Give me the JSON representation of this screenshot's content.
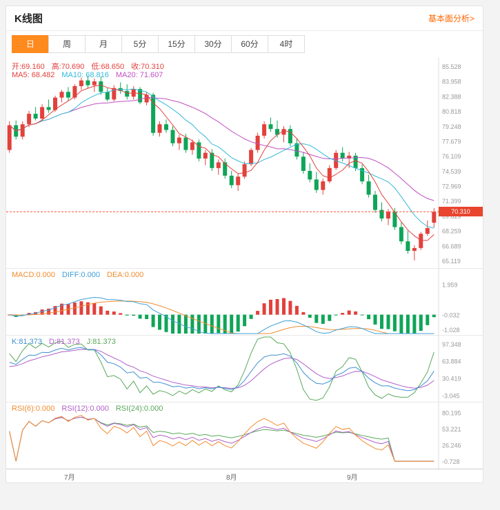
{
  "header": {
    "title": "K线图",
    "analysis_link": "基本面分析>"
  },
  "tabs": [
    {
      "label": "日",
      "active": true
    },
    {
      "label": "周"
    },
    {
      "label": "月"
    },
    {
      "label": "5分"
    },
    {
      "label": "15分"
    },
    {
      "label": "30分"
    },
    {
      "label": "60分"
    },
    {
      "label": "4时"
    }
  ],
  "colors": {
    "up": "#e2413c",
    "down": "#0fa558",
    "ma5": "#e2413c",
    "ma10": "#33b8d8",
    "ma20": "#c24fc2",
    "diff": "#3d9fd8",
    "dea": "#f08c2e",
    "k": "#3d8fd0",
    "d": "#b05fc8",
    "j": "#58a85a",
    "rsi6": "#f08c2e",
    "rsi12": "#b05fc8",
    "rsi24": "#58a85a",
    "price_line": "#ff4b33",
    "badge_bg": "#e8442e",
    "accent": "#ff8a1e",
    "link": "#ff6600"
  },
  "main_chart": {
    "ohlc_line": [
      {
        "text": "开:69.160"
      },
      {
        "text": "高:70.690"
      },
      {
        "text": "低:68.650"
      },
      {
        "text": "收:70.310"
      }
    ],
    "ma_line": [
      {
        "text": "MA5: 68.482",
        "color": "#e2413c"
      },
      {
        "text": "MA10: 68.816",
        "color": "#33b8d8"
      },
      {
        "text": "MA20: 71.607",
        "color": "#c24fc2"
      }
    ],
    "current_price": "70.310"
  },
  "indicators": {
    "macd": {
      "labels": [
        {
          "text": "MACD:0.000",
          "color": "#f08c2e"
        },
        {
          "text": "DIFF:0.000",
          "color": "#3d9fd8"
        },
        {
          "text": "DEA:0.000",
          "color": "#f08c2e"
        }
      ]
    },
    "kdj": {
      "labels": [
        {
          "text": "K:81.373",
          "color": "#3d8fd0"
        },
        {
          "text": "D:81.373",
          "color": "#b05fc8"
        },
        {
          "text": "J:81.373",
          "color": "#58a85a"
        }
      ]
    },
    "rsi": {
      "labels": [
        {
          "text": "RSI(6):0.000",
          "color": "#f08c2e"
        },
        {
          "text": "RSI(12):0.000",
          "color": "#b05fc8"
        },
        {
          "text": "RSI(24):0.000",
          "color": "#58a85a"
        }
      ]
    }
  },
  "chart_data": {
    "type": "candlestick",
    "ohlc_format": [
      "open",
      "high",
      "low",
      "close"
    ],
    "display_values": {
      "open": 69.16,
      "high": 70.69,
      "low": 68.65,
      "close": 70.31,
      "ma5": 68.482,
      "ma10": 68.816,
      "ma20": 71.607,
      "macd": 0.0,
      "diff": 0.0,
      "dea": 0.0,
      "k": 81.373,
      "d": 81.373,
      "j": 81.373,
      "rsi6": 0.0,
      "rsi12": 0.0,
      "rsi24": 0.0
    },
    "main": {
      "y_range": [
        65.119,
        85.528
      ],
      "y_ticks": [
        85.528,
        83.958,
        82.388,
        80.818,
        79.248,
        77.679,
        76.109,
        74.539,
        72.969,
        71.399,
        69.829,
        68.259,
        66.689,
        65.119
      ],
      "current_price": 70.31,
      "candles": [
        [
          76.8,
          79.8,
          76.5,
          79.4
        ],
        [
          79.4,
          79.9,
          77.9,
          78.2
        ],
        [
          78.2,
          79.8,
          77.9,
          79.5
        ],
        [
          79.5,
          80.9,
          79.2,
          80.6
        ],
        [
          80.6,
          81.3,
          79.9,
          80.1
        ],
        [
          80.1,
          81.6,
          79.8,
          81.3
        ],
        [
          81.3,
          82.1,
          80.7,
          81.0
        ],
        [
          81.0,
          82.5,
          80.8,
          82.3
        ],
        [
          82.3,
          83.1,
          81.8,
          82.9
        ],
        [
          82.9,
          83.4,
          82.0,
          82.3
        ],
        [
          82.3,
          83.7,
          82.1,
          83.5
        ],
        [
          83.5,
          84.4,
          83.1,
          84.1
        ],
        [
          84.1,
          84.6,
          83.3,
          83.6
        ],
        [
          83.6,
          84.3,
          82.9,
          84.0
        ],
        [
          84.0,
          84.5,
          82.6,
          82.9
        ],
        [
          82.9,
          83.3,
          81.9,
          82.1
        ],
        [
          82.1,
          83.6,
          81.9,
          83.3
        ],
        [
          83.3,
          83.9,
          82.7,
          83.0
        ],
        [
          83.0,
          83.7,
          82.1,
          82.4
        ],
        [
          82.4,
          83.5,
          82.1,
          83.2
        ],
        [
          83.2,
          83.4,
          81.6,
          81.8
        ],
        [
          81.8,
          82.9,
          81.5,
          82.6
        ],
        [
          82.6,
          82.8,
          78.3,
          78.6
        ],
        [
          78.6,
          79.8,
          78.2,
          79.5
        ],
        [
          79.5,
          80.0,
          78.6,
          78.9
        ],
        [
          78.9,
          79.3,
          77.2,
          77.5
        ],
        [
          77.5,
          78.4,
          76.8,
          78.1
        ],
        [
          78.1,
          78.5,
          76.5,
          76.8
        ],
        [
          76.8,
          77.9,
          76.3,
          77.6
        ],
        [
          77.6,
          77.9,
          75.6,
          75.9
        ],
        [
          75.9,
          76.8,
          75.2,
          76.5
        ],
        [
          76.5,
          76.9,
          74.6,
          74.9
        ],
        [
          74.9,
          75.8,
          74.2,
          75.5
        ],
        [
          75.5,
          75.9,
          73.8,
          74.1
        ],
        [
          74.1,
          74.6,
          72.8,
          73.1
        ],
        [
          73.1,
          74.3,
          72.5,
          74.0
        ],
        [
          74.0,
          75.6,
          73.8,
          75.3
        ],
        [
          75.3,
          77.0,
          75.1,
          76.8
        ],
        [
          76.8,
          78.6,
          76.5,
          78.3
        ],
        [
          78.3,
          79.8,
          78.0,
          79.5
        ],
        [
          79.5,
          80.2,
          78.7,
          79.0
        ],
        [
          79.0,
          79.9,
          78.1,
          78.4
        ],
        [
          78.4,
          79.3,
          77.6,
          79.0
        ],
        [
          79.0,
          79.4,
          77.2,
          77.5
        ],
        [
          77.5,
          78.0,
          75.8,
          76.1
        ],
        [
          76.1,
          76.6,
          74.3,
          74.6
        ],
        [
          74.6,
          75.4,
          73.4,
          73.7
        ],
        [
          73.7,
          74.5,
          72.3,
          72.6
        ],
        [
          72.6,
          73.8,
          72.1,
          73.5
        ],
        [
          73.5,
          75.2,
          73.3,
          74.9
        ],
        [
          74.9,
          76.8,
          74.7,
          76.5
        ],
        [
          76.5,
          77.1,
          75.6,
          75.9
        ],
        [
          75.9,
          76.6,
          74.9,
          76.2
        ],
        [
          76.2,
          76.5,
          74.6,
          74.9
        ],
        [
          74.9,
          75.3,
          73.2,
          73.5
        ],
        [
          73.5,
          74.2,
          71.8,
          72.1
        ],
        [
          72.1,
          72.5,
          70.2,
          70.5
        ],
        [
          70.5,
          71.3,
          69.3,
          69.6
        ],
        [
          69.6,
          70.6,
          68.9,
          70.3
        ],
        [
          70.3,
          70.7,
          68.4,
          68.7
        ],
        [
          68.7,
          69.2,
          66.9,
          67.2
        ],
        [
          67.2,
          68.3,
          65.9,
          66.2
        ],
        [
          66.2,
          66.8,
          65.2,
          66.5
        ],
        [
          66.5,
          68.2,
          66.3,
          68.0
        ],
        [
          68.0,
          69.4,
          67.8,
          68.6
        ],
        [
          69.16,
          70.69,
          68.65,
          70.31
        ]
      ]
    },
    "macd": {
      "y_range": [
        -1.25,
        2.95
      ],
      "y_ticks": [
        1.959,
        -0.032,
        -1.028
      ]
    },
    "kdj": {
      "y_range": [
        -12,
        112
      ],
      "y_ticks": [
        97.348,
        63.884,
        30.419,
        -3.045
      ]
    },
    "rsi": {
      "y_range": [
        -10,
        96
      ],
      "y_ticks": [
        80.195,
        53.221,
        26.246,
        -0.728
      ]
    },
    "x_labels": [
      {
        "text": "7月",
        "pos": 0.147
      },
      {
        "text": "8月",
        "pos": 0.523
      },
      {
        "text": "9月",
        "pos": 0.803
      }
    ]
  }
}
